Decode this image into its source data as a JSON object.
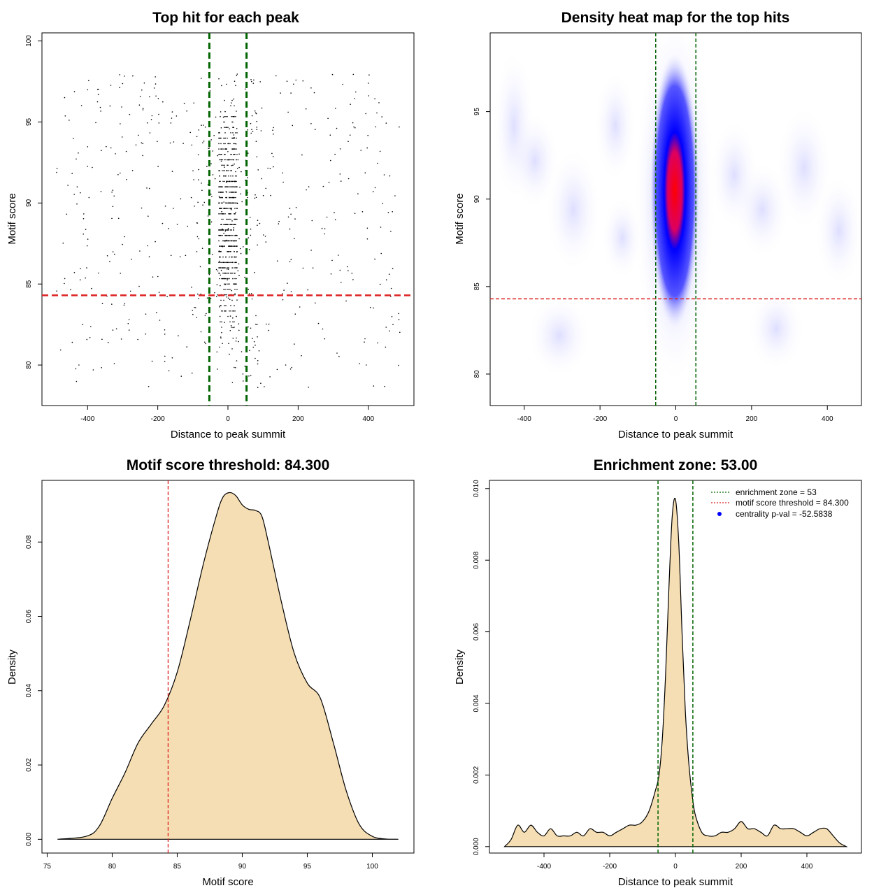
{
  "chart_data": [
    {
      "id": "p1",
      "type": "scatter",
      "title": "Top hit for each peak",
      "xlabel": "Distance to peak summit",
      "ylabel": "Motif score",
      "xlim": [
        -530,
        530
      ],
      "ylim": [
        77.5,
        100.5
      ],
      "xticks": [
        -400,
        -200,
        0,
        200,
        400
      ],
      "yticks": [
        80,
        85,
        90,
        95,
        100
      ],
      "vlines": [
        -53,
        53
      ],
      "hline": 84.3,
      "vline_color": "#006400",
      "hline_color": "#dd2222",
      "point_color": "#000000",
      "points_note": "~1300 points: dense column at |x|<=25 spanning scores 80-98, sparse uniform background across x in [-490,490]"
    },
    {
      "id": "p2",
      "type": "heatmap",
      "title": "Density heat map for the top hits",
      "xlabel": "Distance to peak summit",
      "ylabel": "Motif score",
      "xlim": [
        -490,
        490
      ],
      "ylim": [
        78.2,
        99.5
      ],
      "xticks": [
        -400,
        -200,
        0,
        200,
        400
      ],
      "yticks": [
        80,
        85,
        90,
        95
      ],
      "vlines": [
        -53,
        53
      ],
      "hline": 84.3,
      "peak": {
        "x": 0,
        "y": 90.5
      },
      "colormap": [
        "#ffffff",
        "#0000ff",
        "#ff0000"
      ]
    },
    {
      "id": "p3",
      "type": "area",
      "title": "Motif score threshold: 84.300",
      "xlabel": "Motif score",
      "ylabel": "Density",
      "xlim": [
        74.6,
        103.2
      ],
      "ylim": [
        -0.0037,
        0.0966
      ],
      "xticks": [
        75,
        80,
        85,
        90,
        95,
        100
      ],
      "yticks": [
        0.0,
        0.02,
        0.04,
        0.06,
        0.08
      ],
      "yticklabels": [
        "0.00",
        "0.02",
        "0.04",
        "0.06",
        "0.08"
      ],
      "fill": "#f5deb3",
      "vline": 84.3,
      "x": [
        75.8,
        78,
        79,
        80,
        81,
        82,
        83,
        84,
        85,
        86,
        87,
        88,
        88.5,
        89,
        89.5,
        90,
        90.5,
        91,
        91.5,
        92,
        93,
        94,
        95,
        96,
        97,
        98,
        99,
        100,
        101,
        102
      ],
      "y": [
        0.0,
        0.0008,
        0.0035,
        0.011,
        0.018,
        0.026,
        0.031,
        0.036,
        0.045,
        0.059,
        0.074,
        0.087,
        0.092,
        0.0933,
        0.0925,
        0.09,
        0.0888,
        0.0885,
        0.087,
        0.08,
        0.064,
        0.05,
        0.042,
        0.038,
        0.026,
        0.013,
        0.004,
        0.0008,
        0.0001,
        0.0
      ]
    },
    {
      "id": "p4",
      "type": "area",
      "title": "Enrichment zone: 53.00",
      "xlabel": "Distance to peak summit",
      "ylabel": "Density",
      "xlim": [
        -566,
        566
      ],
      "ylim": [
        -0.00018,
        0.01023
      ],
      "xticks": [
        -400,
        -200,
        0,
        200,
        400
      ],
      "yticks": [
        0.0,
        0.002,
        0.004,
        0.006,
        0.008,
        0.01
      ],
      "yticklabels": [
        "0.000",
        "0.002",
        "0.004",
        "0.006",
        "0.008",
        "0.010"
      ],
      "fill": "#f5deb3",
      "vlines": [
        -53,
        53
      ],
      "legend": [
        {
          "label": "enrichment zone = 53",
          "color": "#006400",
          "kind": "dotted"
        },
        {
          "label": "motif score threshold = 84.300",
          "color": "#dd2222",
          "kind": "dotted"
        },
        {
          "label": "centrality p-val = -52.5838",
          "color": "#0000ff",
          "kind": "point"
        }
      ],
      "x": [
        -520,
        -500,
        -480,
        -460,
        -440,
        -420,
        -400,
        -380,
        -360,
        -340,
        -320,
        -300,
        -280,
        -260,
        -240,
        -220,
        -200,
        -180,
        -160,
        -140,
        -120,
        -100,
        -80,
        -60,
        -50,
        -40,
        -30,
        -20,
        -10,
        0,
        10,
        20,
        30,
        40,
        50,
        60,
        80,
        100,
        120,
        140,
        160,
        180,
        200,
        220,
        240,
        260,
        280,
        300,
        320,
        340,
        360,
        380,
        400,
        420,
        440,
        460,
        480,
        500,
        520
      ],
      "y": [
        0.0,
        0.0002,
        0.0006,
        0.0004,
        0.0006,
        0.0004,
        0.0003,
        0.0005,
        0.0003,
        0.0003,
        0.0003,
        0.0004,
        0.0003,
        0.0005,
        0.0004,
        0.0004,
        0.0003,
        0.0004,
        0.0005,
        0.0006,
        0.0006,
        0.0007,
        0.001,
        0.0016,
        0.002,
        0.003,
        0.0048,
        0.0072,
        0.0092,
        0.0097,
        0.0085,
        0.006,
        0.0038,
        0.0024,
        0.0015,
        0.0009,
        0.0004,
        0.0003,
        0.0003,
        0.0004,
        0.0004,
        0.0005,
        0.0007,
        0.0005,
        0.0005,
        0.0004,
        0.0003,
        0.0006,
        0.0005,
        0.0005,
        0.0005,
        0.0004,
        0.0003,
        0.0004,
        0.0005,
        0.0005,
        0.0003,
        0.0001,
        0.0
      ]
    }
  ]
}
